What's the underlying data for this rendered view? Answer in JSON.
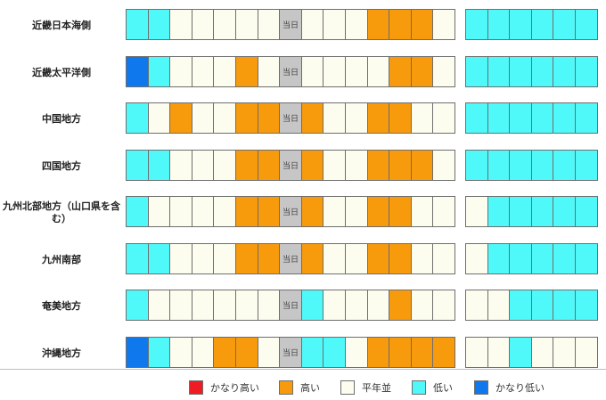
{
  "today_label": "当日",
  "colors": {
    "very_high": "#f01c24",
    "high": "#f79a0c",
    "normal": "#fdfdef",
    "low": "#4ff9f9",
    "very_low": "#0f78ec",
    "today": "#c6c6c6"
  },
  "rows": [
    {
      "region": "近畿日本海側",
      "left": [
        "L",
        "L",
        "N",
        "N",
        "N",
        "N",
        "N",
        "T",
        "N",
        "N",
        "N",
        "H",
        "H",
        "H",
        "N"
      ],
      "right": [
        "L",
        "L",
        "L",
        "L",
        "L",
        "L"
      ]
    },
    {
      "region": "近畿太平洋側",
      "left": [
        "VL",
        "L",
        "N",
        "N",
        "N",
        "H",
        "N",
        "T",
        "N",
        "N",
        "N",
        "N",
        "H",
        "H",
        "N"
      ],
      "right": [
        "L",
        "L",
        "L",
        "L",
        "L",
        "L"
      ]
    },
    {
      "region": "中国地方",
      "left": [
        "L",
        "N",
        "H",
        "N",
        "N",
        "H",
        "H",
        "T",
        "H",
        "N",
        "N",
        "H",
        "H",
        "N",
        "N"
      ],
      "right": [
        "L",
        "L",
        "L",
        "L",
        "L",
        "L"
      ]
    },
    {
      "region": "四国地方",
      "left": [
        "L",
        "L",
        "N",
        "N",
        "N",
        "H",
        "H",
        "T",
        "H",
        "N",
        "N",
        "H",
        "H",
        "H",
        "N"
      ],
      "right": [
        "L",
        "L",
        "L",
        "L",
        "L",
        "L"
      ]
    },
    {
      "region": "九州北部地方（山口県を含む）",
      "left": [
        "L",
        "N",
        "N",
        "N",
        "N",
        "H",
        "H",
        "T",
        "H",
        "N",
        "N",
        "H",
        "H",
        "N",
        "N"
      ],
      "right": [
        "N",
        "L",
        "L",
        "L",
        "L",
        "L"
      ]
    },
    {
      "region": "九州南部",
      "left": [
        "L",
        "L",
        "N",
        "N",
        "N",
        "H",
        "H",
        "T",
        "H",
        "N",
        "N",
        "H",
        "H",
        "N",
        "N"
      ],
      "right": [
        "N",
        "L",
        "L",
        "L",
        "L",
        "L"
      ]
    },
    {
      "region": "奄美地方",
      "left": [
        "L",
        "N",
        "N",
        "N",
        "N",
        "N",
        "N",
        "T",
        "L",
        "N",
        "N",
        "N",
        "H",
        "N",
        "N"
      ],
      "right": [
        "N",
        "N",
        "L",
        "L",
        "L",
        "L"
      ]
    },
    {
      "region": "沖縄地方",
      "left": [
        "VL",
        "L",
        "N",
        "N",
        "H",
        "H",
        "N",
        "T",
        "L",
        "L",
        "N",
        "H",
        "H",
        "H",
        "H"
      ],
      "right": [
        "N",
        "N",
        "L",
        "N",
        "N",
        "N"
      ]
    }
  ],
  "legend": [
    {
      "key": "very_high",
      "label": "かなり高い"
    },
    {
      "key": "high",
      "label": "高い"
    },
    {
      "key": "normal",
      "label": "平年並"
    },
    {
      "key": "low",
      "label": "低い"
    },
    {
      "key": "very_low",
      "label": "かなり低い"
    }
  ]
}
